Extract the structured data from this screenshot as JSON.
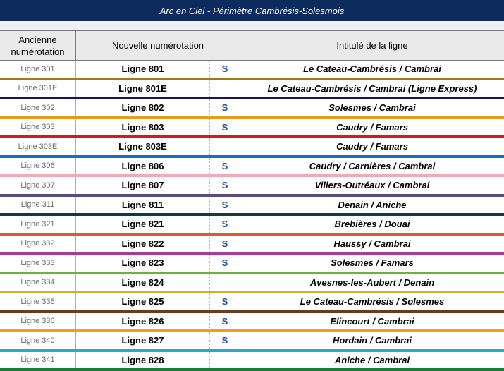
{
  "title": "Arc en Ciel - Périmètre Cambrésis-Solesmois",
  "columns": {
    "old": "Ancienne numérotation",
    "new": "Nouvelle numérotation",
    "name": "Intitulé de la ligne"
  },
  "rows": [
    {
      "old": "Ligne 301",
      "new": "Ligne 801",
      "s": "S",
      "name": "Le Cateau-Cambrésis / Cambrai",
      "color": "#a47a12"
    },
    {
      "old": "Ligne 301E",
      "new": "Ligne 801E",
      "s": "",
      "name": "Le Cateau-Cambrésis / Cambrai (Ligne Express)",
      "color": "#141466"
    },
    {
      "old": "Ligne 302",
      "new": "Ligne 802",
      "s": "S",
      "name": "Solesmes / Cambrai",
      "color": "#e89a1a"
    },
    {
      "old": "Ligne 303",
      "new": "Ligne 803",
      "s": "S",
      "name": "Caudry / Famars",
      "color": "#d21c1c"
    },
    {
      "old": "Ligne 303E",
      "new": "Ligne 803E",
      "s": "",
      "name": "Caudry / Famars",
      "color": "#1a6fb5"
    },
    {
      "old": "Ligne 306",
      "new": "Ligne 806",
      "s": "S",
      "name": "Caudry / Carnières / Cambrai",
      "color": "#efaab8"
    },
    {
      "old": "Ligne 307",
      "new": "Ligne 807",
      "s": "S",
      "name": "Villers-Outréaux / Cambrai",
      "color": "#5c4a82"
    },
    {
      "old": "Ligne 311",
      "new": "Ligne 811",
      "s": "S",
      "name": "Denain / Aniche",
      "color": "#0d3a45"
    },
    {
      "old": "Ligne 321",
      "new": "Ligne 821",
      "s": "S",
      "name": "Brebières / Douai",
      "color": "#e05a30"
    },
    {
      "old": "Ligne 332",
      "new": "Ligne 822",
      "s": "S",
      "name": "Haussy / Cambrai",
      "color": "#a83a9a"
    },
    {
      "old": "Ligne 333",
      "new": "Ligne 823",
      "s": "S",
      "name": "Solesmes / Famars",
      "color": "#6ab23a"
    },
    {
      "old": "Ligne 334",
      "new": "Ligne 824",
      "s": "",
      "name": "Avesnes-les-Aubert / Denain",
      "color": "#cfae2a"
    },
    {
      "old": "Ligne 335",
      "new": "Ligne 825",
      "s": "S",
      "name": "Le Cateau-Cambrésis / Solesmes",
      "color": "#6a3a1e"
    },
    {
      "old": "Ligne 336",
      "new": "Ligne 826",
      "s": "S",
      "name": "Elincourt / Cambrai",
      "color": "#f2a01a"
    },
    {
      "old": "Ligne 340",
      "new": "Ligne 827",
      "s": "S",
      "name": "Hordain / Cambrai",
      "color": "#27a9c9"
    },
    {
      "old": "Ligne 341",
      "new": "Ligne 828",
      "s": "",
      "name": "Aniche / Cambrai",
      "color": "#1e7a3a"
    }
  ]
}
